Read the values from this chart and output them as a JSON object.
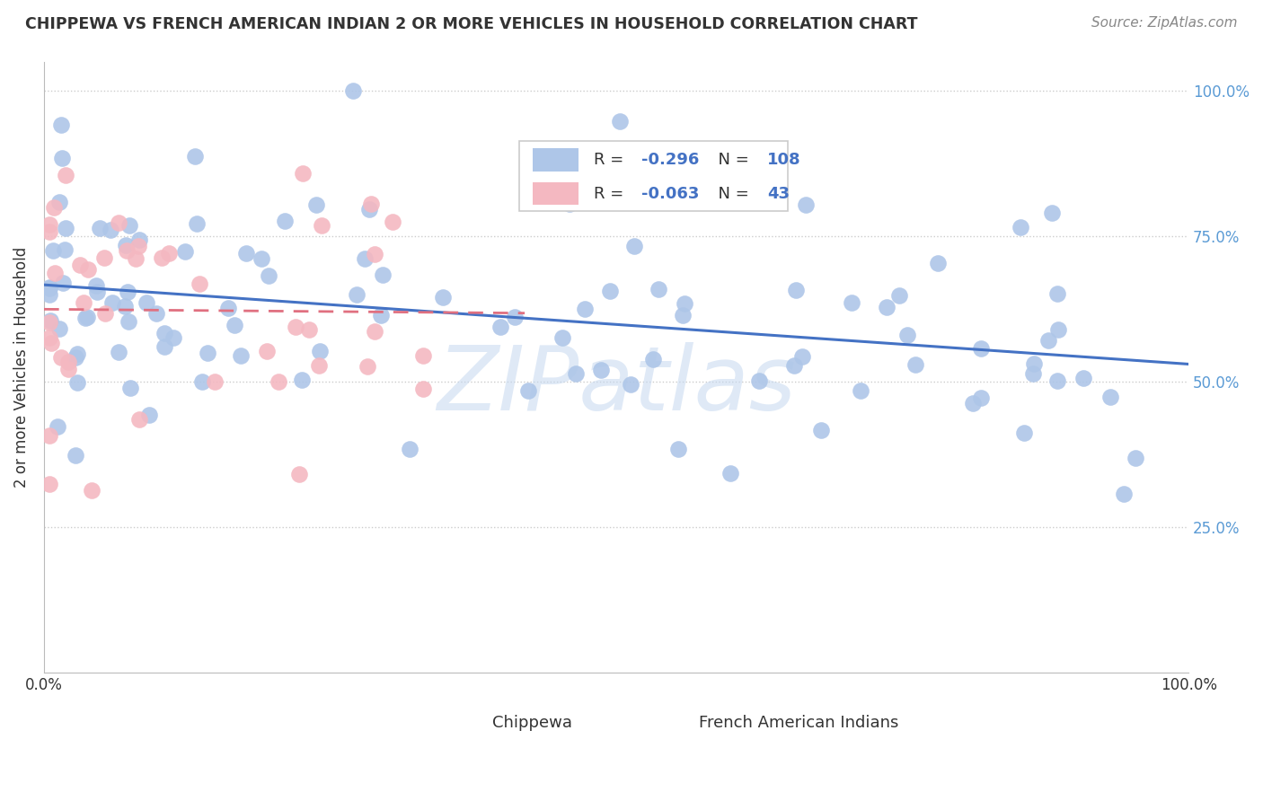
{
  "title": "CHIPPEWA VS FRENCH AMERICAN INDIAN 2 OR MORE VEHICLES IN HOUSEHOLD CORRELATION CHART",
  "source": "Source: ZipAtlas.com",
  "ylabel": "2 or more Vehicles in Household",
  "chippewa_R": -0.296,
  "chippewa_N": 108,
  "french_R": -0.063,
  "french_N": 43,
  "chippewa_color": "#aec6e8",
  "french_color": "#f4b8c1",
  "chippewa_line_color": "#4472c4",
  "french_line_color": "#e07080",
  "background_color": "#ffffff",
  "grid_color": "#cccccc",
  "watermark": "ZIPatlas",
  "legend_labels": [
    "Chippewa",
    "French American Indians"
  ],
  "title_color": "#333333",
  "source_color": "#888888",
  "right_tick_color": "#5b9bd5",
  "text_color": "#333333"
}
